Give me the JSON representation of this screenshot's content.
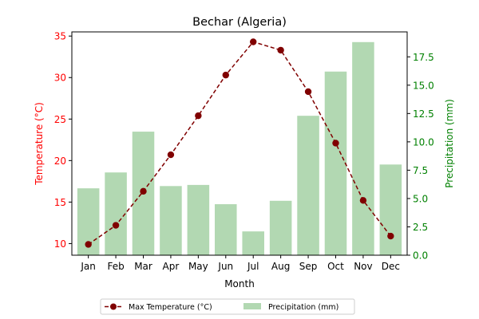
{
  "chart_data": {
    "type": "bar+line",
    "title": "Bechar (Algeria)",
    "xlabel": "Month",
    "ylabel_left": "Temperature (°C)",
    "ylabel_right": "Precipitation (mm)",
    "categories": [
      "Jan",
      "Feb",
      "Mar",
      "Apr",
      "May",
      "Jun",
      "Jul",
      "Aug",
      "Sep",
      "Oct",
      "Nov",
      "Dec"
    ],
    "ylim_left": [
      8.6,
      35.5
    ],
    "ylim_right": [
      0,
      19.7
    ],
    "yticks_left": [
      "10",
      "15",
      "20",
      "25",
      "30",
      "35"
    ],
    "yticks_right": [
      "0.0",
      "2.5",
      "5.0",
      "7.5",
      "10.0",
      "12.5",
      "15.0",
      "17.5"
    ],
    "yticks_left_values": [
      10,
      15,
      20,
      25,
      30,
      35
    ],
    "yticks_right_values": [
      0,
      2.5,
      5,
      7.5,
      10,
      12.5,
      15,
      17.5
    ],
    "grid": false,
    "legend_placement": "bottom-center",
    "series": [
      {
        "name": "Max Temperature (°C)",
        "axis": "left",
        "type": "line",
        "color": "#800000",
        "values": [
          9.9,
          12.2,
          16.3,
          20.7,
          25.4,
          30.3,
          34.3,
          33.3,
          28.3,
          22.1,
          15.2,
          10.9
        ]
      },
      {
        "name": "Precipitation (mm)",
        "axis": "right",
        "type": "bar",
        "color": "#b2d8b2",
        "values": [
          5.9,
          7.3,
          10.9,
          6.1,
          6.2,
          4.5,
          2.1,
          4.8,
          12.3,
          16.2,
          18.8,
          8.0
        ]
      }
    ],
    "colors": {
      "left_axis": "#ff0000",
      "right_axis": "#008000",
      "line": "#800000",
      "bar": "#b2d8b2"
    }
  }
}
